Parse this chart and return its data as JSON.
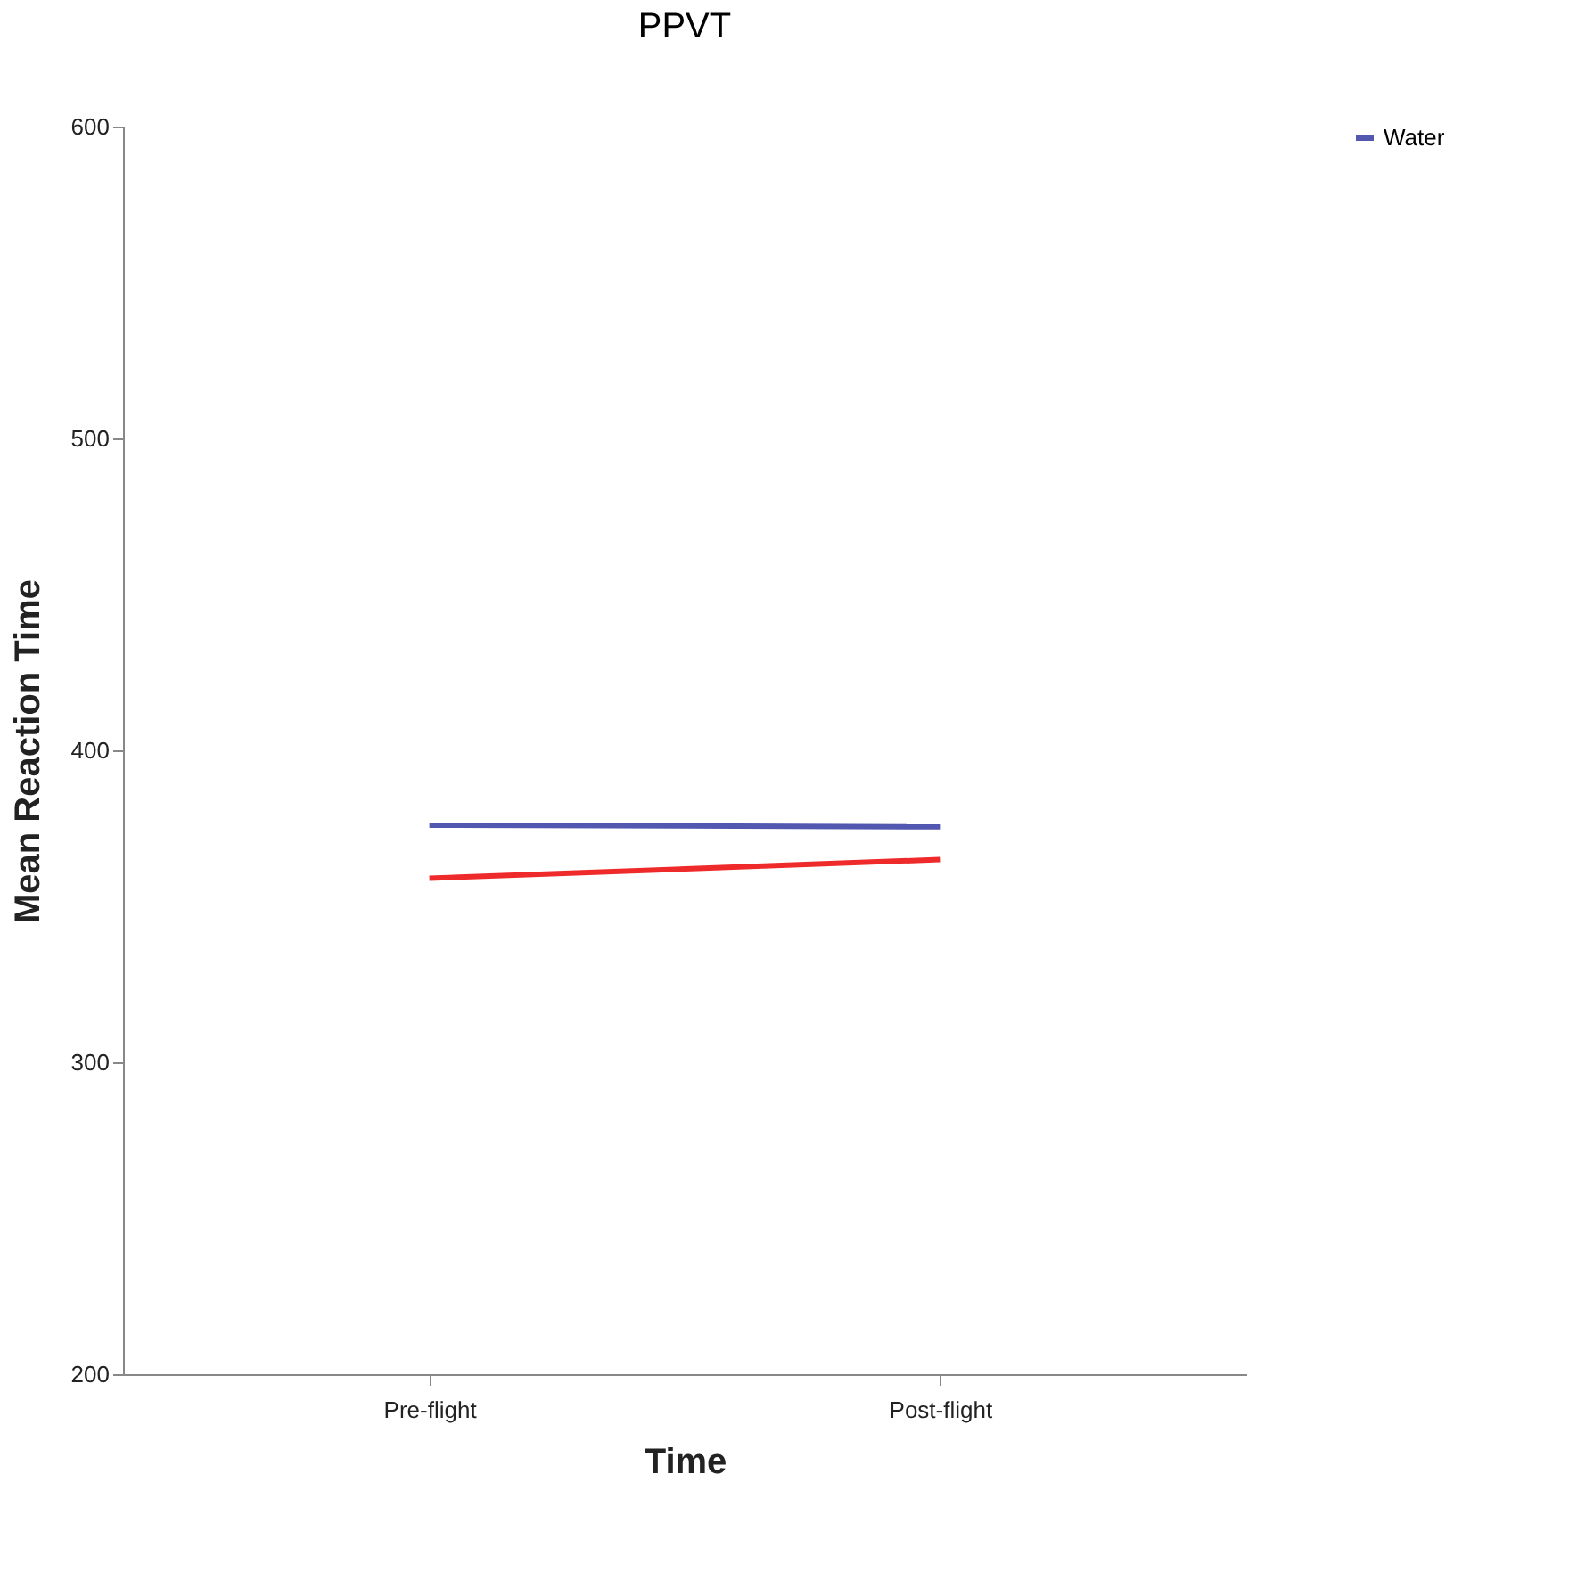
{
  "chart_data": {
    "type": "line",
    "title": "PPVT",
    "xlabel": "Time",
    "ylabel": "Mean Reaction Time",
    "categories": [
      "Pre-flight",
      "Post-flight"
    ],
    "series": [
      {
        "name": "Water",
        "color": "#5257b0",
        "values": [
          376,
          375.5
        ]
      },
      {
        "color": "#ee2a2a",
        "values": [
          359,
          365
        ]
      }
    ],
    "ylim": [
      200,
      600
    ],
    "yticks": [
      200,
      300,
      400,
      500,
      600
    ],
    "grid": false,
    "legend": "right",
    "marker": "none",
    "line_style": "solid"
  }
}
